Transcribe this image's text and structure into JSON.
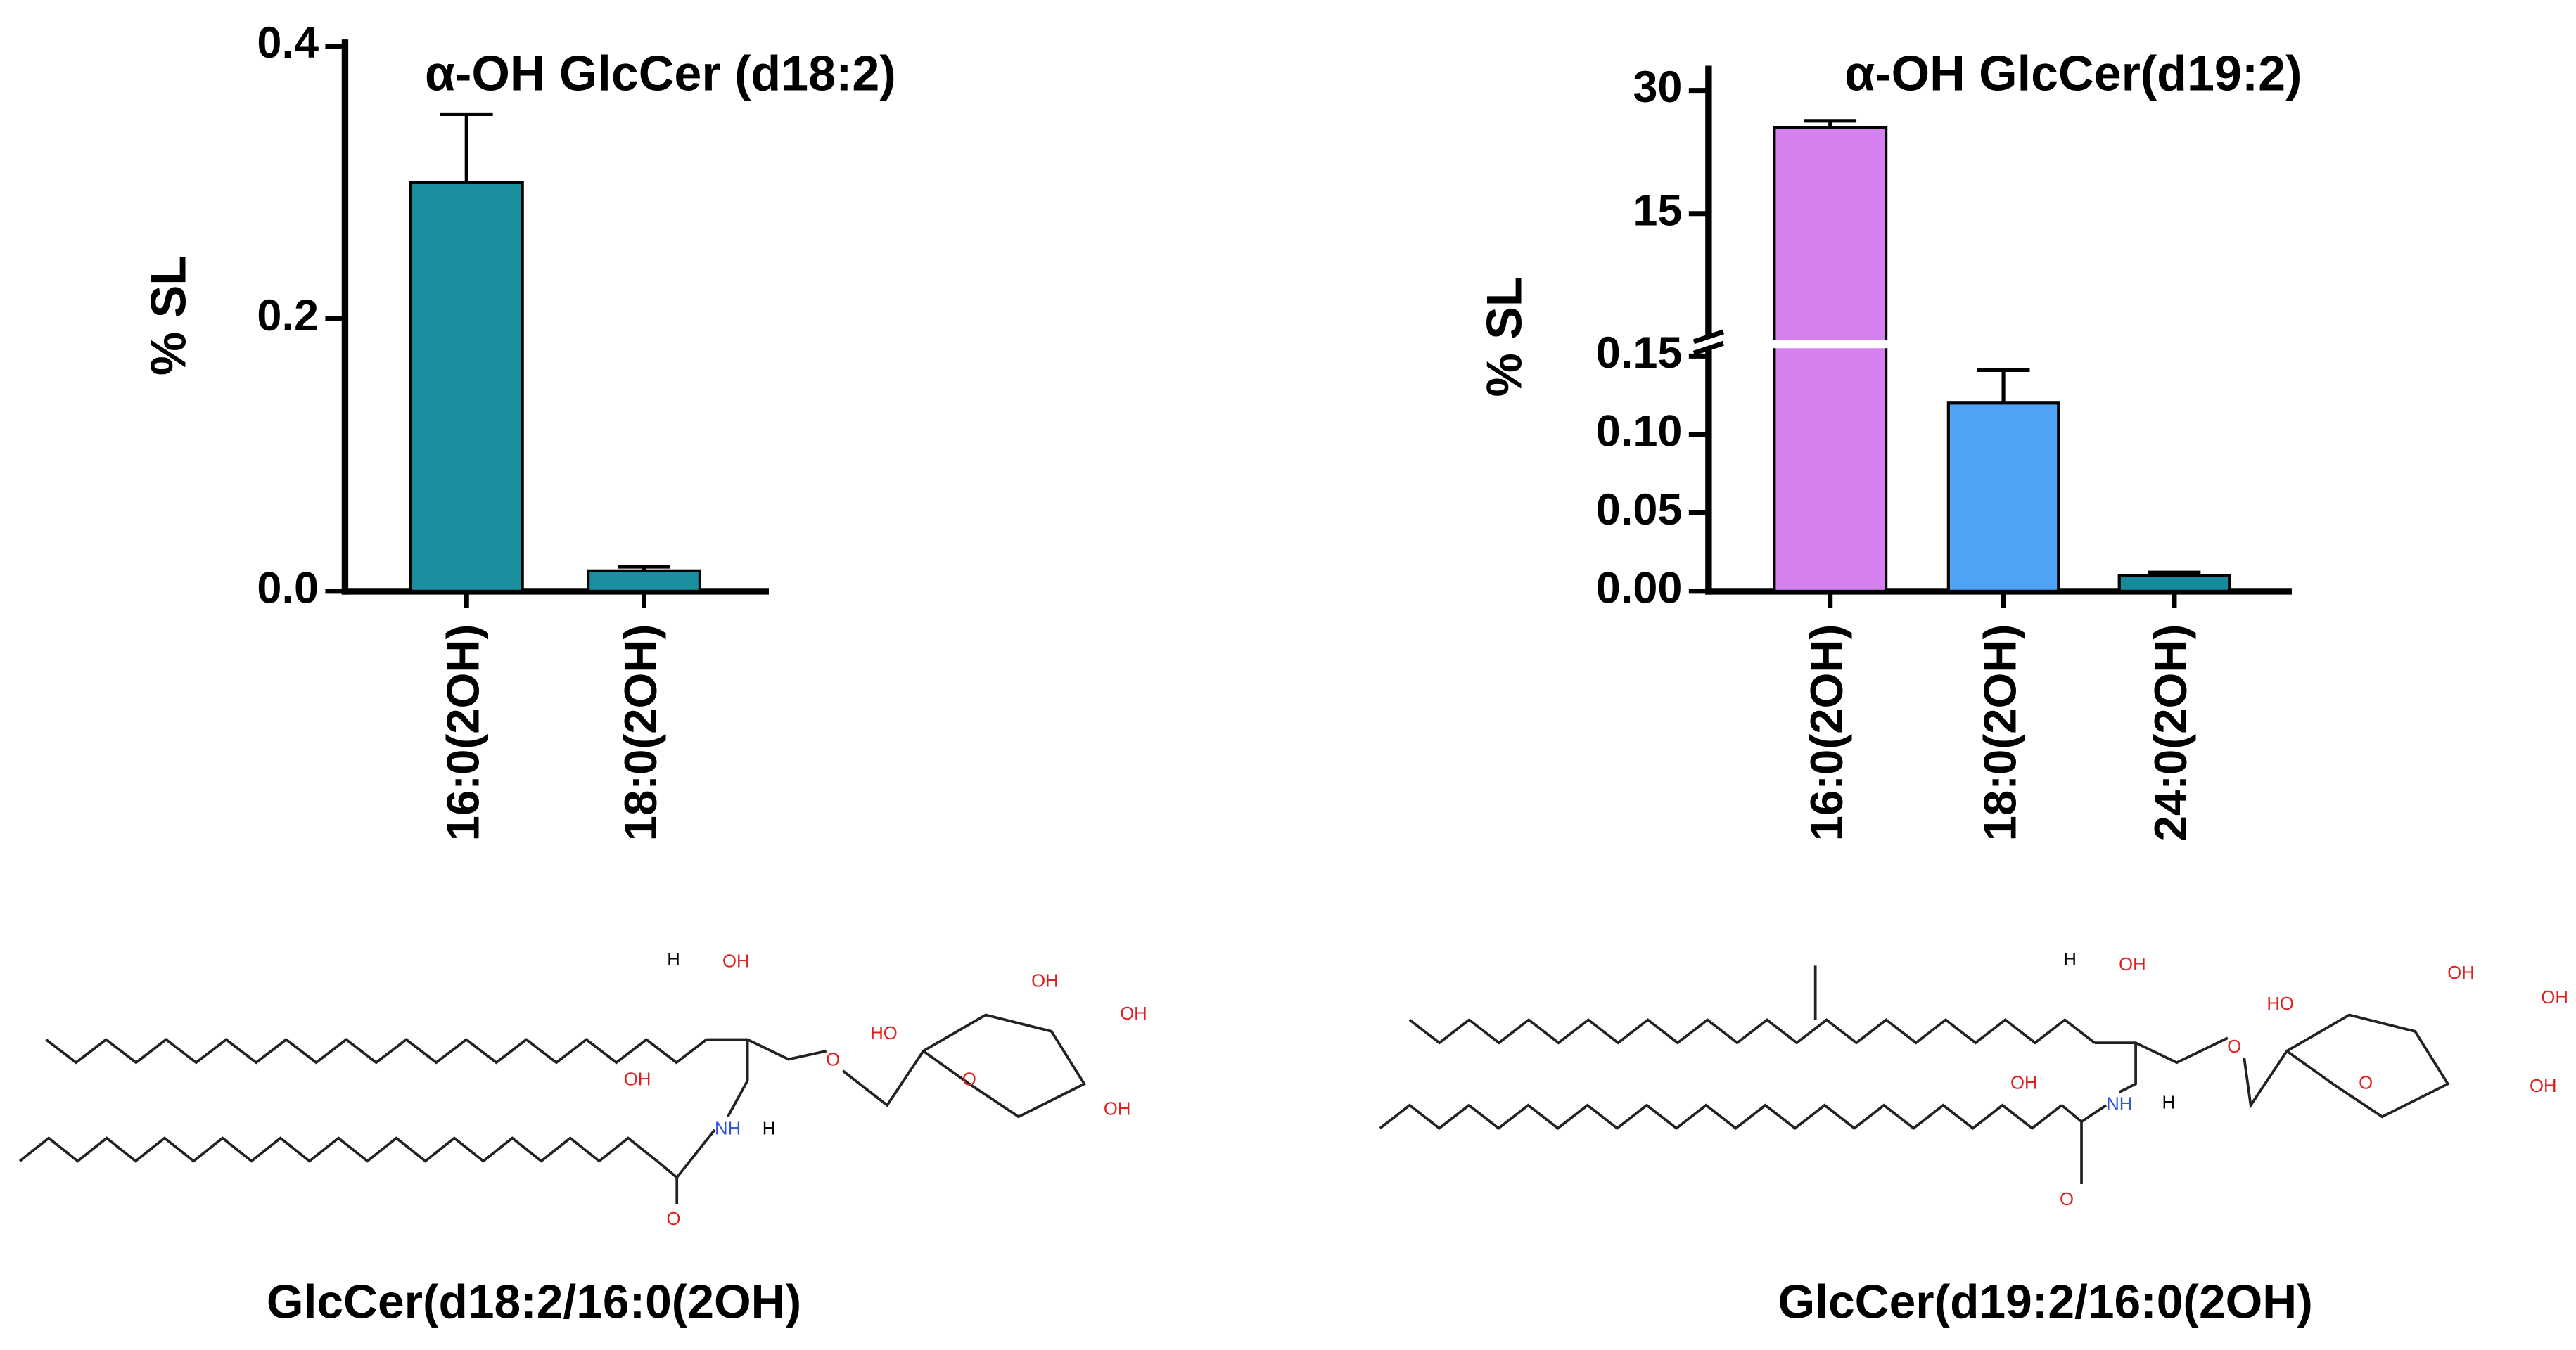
{
  "chart_data": [
    {
      "type": "bar",
      "title": "α-OH GlcCer (d18:2)",
      "y_label": "% SL",
      "categories": [
        "16:0(2OH)",
        "18:0(2OH)"
      ],
      "values": [
        0.3,
        0.015
      ],
      "errors": [
        0.05,
        0.003
      ],
      "colors": [
        "#1a8fa0",
        "#1a8fa0"
      ],
      "ylim": [
        0,
        0.4
      ],
      "yticks": [
        {
          "value": 0,
          "label": "0.0"
        },
        0.2,
        0.4
      ]
    },
    {
      "type": "bar",
      "title": "α-OH GlcCer(d19:2)",
      "y_label": "% SL",
      "categories": [
        "16:0(2OH)",
        "18:0(2OH)",
        "24:0(2OH)"
      ],
      "values": [
        25.5,
        0.12,
        0.01
      ],
      "errors": [
        0.8,
        0.021,
        0.002
      ],
      "colors": [
        "#d580ef",
        "#4fa3f7",
        "#168a9a"
      ],
      "axis_break": true,
      "ylim": [
        0,
        0.155
      ],
      "yticks": [
        {
          "value": 0,
          "label": "0.00"
        },
        0.05,
        {
          "value": 0.1,
          "label": "0.10"
        },
        0.15
      ],
      "ylim_upper": [
        0,
        33
      ],
      "yticks_upper": [
        15,
        30
      ]
    }
  ],
  "structures": [
    {
      "caption": "GlcCer(d18:2/16:0(2OH)",
      "labels": [
        "H",
        "OH",
        "HO",
        "OH",
        "OH",
        "O",
        "OH",
        "O",
        "OH",
        "NH",
        "H",
        "O"
      ]
    },
    {
      "caption": "GlcCer(d19:2/16:0(2OH)",
      "labels": [
        "H",
        "OH",
        "HO",
        "OH",
        "OH",
        "O",
        "OH",
        "O",
        "OH",
        "NH",
        "H",
        "O"
      ]
    }
  ]
}
